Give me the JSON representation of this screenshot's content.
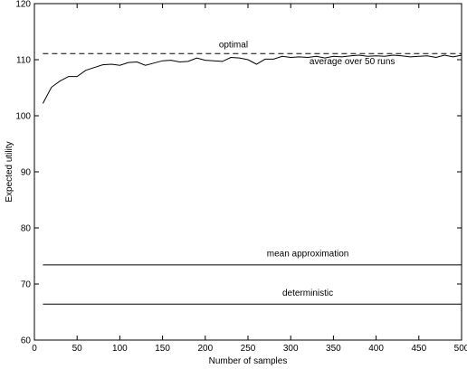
{
  "chart_data": {
    "type": "line",
    "xlabel": "Number of samples",
    "ylabel": "Expected utility",
    "xlim": [
      0,
      500
    ],
    "ylim": [
      60,
      120
    ],
    "xticks": [
      0,
      50,
      100,
      150,
      200,
      250,
      300,
      350,
      400,
      450,
      500
    ],
    "yticks": [
      60,
      70,
      80,
      90,
      100,
      110,
      120
    ],
    "grid": false,
    "series": [
      {
        "name": "optimal",
        "style": "dashed",
        "x": [
          10,
          500
        ],
        "y": [
          111.1,
          111.1
        ]
      },
      {
        "name": "average over 50 runs",
        "style": "solid",
        "x": [
          10,
          20,
          30,
          40,
          50,
          60,
          70,
          80,
          90,
          100,
          110,
          120,
          130,
          140,
          150,
          160,
          170,
          180,
          190,
          200,
          210,
          220,
          230,
          240,
          250,
          260,
          270,
          280,
          290,
          300,
          310,
          320,
          330,
          340,
          350,
          360,
          370,
          380,
          390,
          400,
          410,
          420,
          430,
          440,
          450,
          460,
          470,
          480,
          490,
          500
        ],
        "y": [
          102.2,
          105.1,
          106.2,
          107.0,
          107.0,
          108.1,
          108.6,
          109.1,
          109.2,
          109.0,
          109.5,
          109.6,
          109.0,
          109.4,
          109.8,
          109.9,
          109.6,
          109.7,
          110.3,
          109.9,
          109.8,
          109.7,
          110.4,
          110.3,
          110.0,
          109.2,
          110.1,
          110.1,
          110.6,
          110.4,
          110.5,
          110.4,
          110.6,
          110.3,
          110.6,
          110.5,
          110.7,
          110.8,
          110.6,
          110.7,
          110.6,
          110.8,
          110.7,
          110.5,
          110.6,
          110.7,
          110.4,
          110.8,
          110.5,
          110.8
        ]
      },
      {
        "name": "mean approximation",
        "style": "solid",
        "x": [
          10,
          500
        ],
        "y": [
          73.4,
          73.4
        ]
      },
      {
        "name": "deterministic",
        "style": "solid",
        "x": [
          10,
          500
        ],
        "y": [
          66.4,
          66.4
        ]
      }
    ],
    "annotations": [
      {
        "text": "optimal",
        "x": 233,
        "y": 112.2
      },
      {
        "text": "average over 50 runs",
        "x": 372,
        "y": 109.2
      },
      {
        "text": "mean approximation",
        "x": 320,
        "y": 74.9
      },
      {
        "text": "deterministic",
        "x": 320,
        "y": 67.9
      }
    ]
  }
}
